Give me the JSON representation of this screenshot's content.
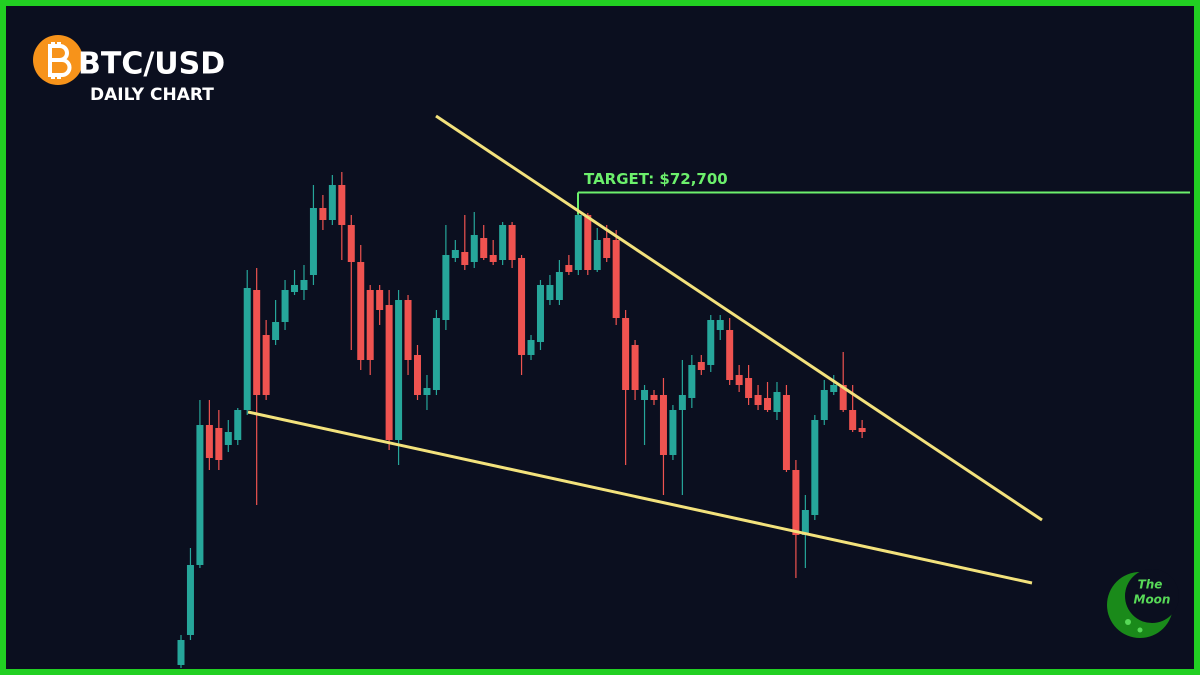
{
  "chart_data": {
    "type": "candlestick",
    "title": "BTC/USD",
    "subtitle": "DAILY CHART",
    "open": [
      53800,
      55000,
      57800,
      63400,
      63280,
      62600,
      62800,
      64000,
      68800,
      67000,
      66800,
      67520,
      68720,
      68800,
      69400,
      72080,
      71600,
      73000,
      71400,
      69920,
      68800,
      68800,
      68200,
      62800,
      68400,
      66200,
      64600,
      64800,
      67600,
      70080,
      70320,
      69920,
      70880,
      70200,
      70000,
      71400,
      70080,
      66200,
      66720,
      68400,
      68400,
      69800,
      69600,
      71800,
      69600,
      70880,
      70800,
      67680,
      66600,
      64400,
      64600,
      64600,
      62200,
      64000,
      64480,
      65920,
      65800,
      67200,
      67200,
      65400,
      65280,
      64600,
      64480,
      63920,
      64600,
      61600,
      59000,
      59800,
      63600,
      64720,
      65000,
      64000,
      63280
    ],
    "high": [
      55000,
      58480,
      64400,
      64400,
      64000,
      63600,
      64080,
      69600,
      69680,
      67600,
      68400,
      69200,
      69600,
      69800,
      73000,
      72600,
      73400,
      73520,
      71800,
      70600,
      69000,
      69000,
      68800,
      68800,
      68600,
      66600,
      65400,
      68000,
      71400,
      70800,
      71800,
      71920,
      71400,
      70800,
      71520,
      71520,
      70200,
      67000,
      69200,
      69400,
      70000,
      70200,
      72000,
      71880,
      71280,
      71400,
      71200,
      68000,
      66800,
      65000,
      64800,
      65280,
      64200,
      66000,
      66200,
      66200,
      67800,
      67800,
      67680,
      65800,
      65800,
      65000,
      65120,
      65120,
      65000,
      62000,
      60600,
      63800,
      65200,
      65400,
      66320,
      65000,
      63600
    ],
    "low": [
      53680,
      54800,
      57680,
      61600,
      61600,
      62320,
      62600,
      63800,
      60200,
      64400,
      66600,
      67200,
      68600,
      68400,
      69000,
      71200,
      71400,
      70000,
      66400,
      65600,
      65400,
      67400,
      62400,
      61800,
      65400,
      64400,
      64000,
      64600,
      67200,
      69920,
      69600,
      69680,
      70000,
      69800,
      69800,
      69680,
      65400,
      66000,
      66400,
      68200,
      68200,
      69400,
      69400,
      69400,
      69520,
      69920,
      67400,
      61800,
      64400,
      62600,
      64200,
      60600,
      62000,
      60600,
      64080,
      65400,
      65520,
      66800,
      65000,
      64720,
      64200,
      64000,
      63920,
      63600,
      61520,
      57280,
      57680,
      59600,
      63400,
      64600,
      63920,
      63120,
      62880
    ],
    "close": [
      54800,
      57800,
      63400,
      62080,
      62000,
      63120,
      64000,
      68880,
      64600,
      64600,
      67520,
      68800,
      69000,
      69200,
      72080,
      71600,
      73000,
      71400,
      69920,
      66000,
      66000,
      68000,
      62800,
      68400,
      66000,
      64600,
      64880,
      67680,
      70200,
      70400,
      69800,
      71000,
      70080,
      69920,
      71400,
      70000,
      66200,
      66800,
      69000,
      69000,
      69520,
      69520,
      71800,
      69600,
      70800,
      70080,
      67680,
      64800,
      64800,
      64800,
      64400,
      62200,
      64000,
      64600,
      65800,
      65600,
      67600,
      67600,
      65200,
      65000,
      64480,
      64200,
      64000,
      64720,
      61600,
      59000,
      60000,
      63600,
      64800,
      65000,
      64000,
      63200,
      63120
    ],
    "up_color": "#26a69a",
    "down_color": "#ef5350",
    "ylim": [
      53400,
      80400
    ],
    "target": {
      "value": 72700,
      "label": "TARGET: $72,700",
      "color": "#6cf06c"
    }
  },
  "logo": {
    "line1": "The",
    "line2": "Moon"
  }
}
